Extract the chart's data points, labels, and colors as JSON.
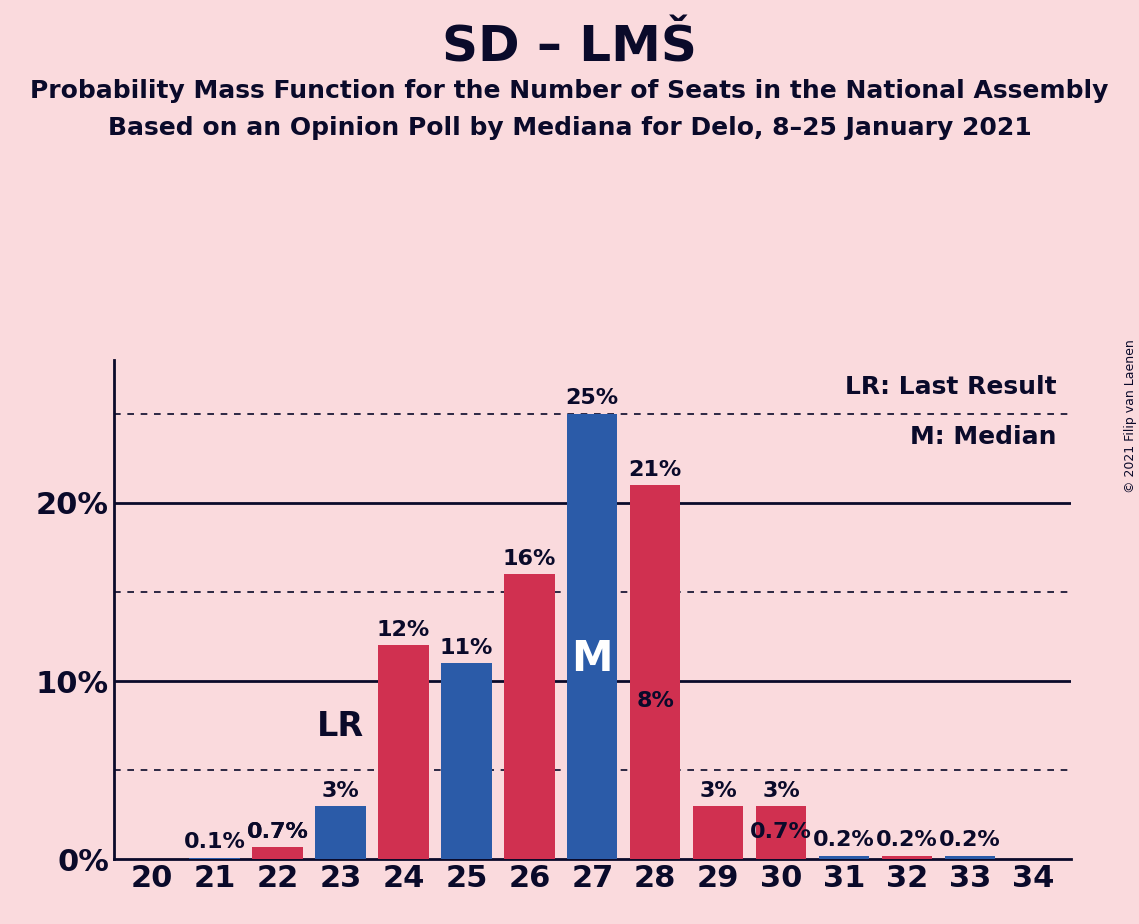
{
  "title": "SD – LMŠ",
  "subtitle1": "Probability Mass Function for the Number of Seats in the National Assembly",
  "subtitle2": "Based on an Opinion Poll by Mediana for Delo, 8–25 January 2021",
  "copyright": "© 2021 Filip van Laenen",
  "seats": [
    20,
    21,
    22,
    23,
    24,
    25,
    26,
    27,
    28,
    29,
    30,
    31,
    32,
    33,
    34
  ],
  "blue_values": [
    0.0,
    0.1,
    0.7,
    3.0,
    0.0,
    11.0,
    0.0,
    25.0,
    8.0,
    0.0,
    0.7,
    0.2,
    0.0,
    0.2,
    0.0
  ],
  "red_values": [
    0.0,
    0.0,
    0.7,
    0.0,
    12.0,
    0.0,
    16.0,
    0.0,
    21.0,
    3.0,
    3.0,
    0.0,
    0.2,
    0.0,
    0.0
  ],
  "blue_color": "#2B5BA8",
  "red_color": "#D03050",
  "background_color": "#FADADD",
  "text_color": "#0A0A2A",
  "median_seat": 27,
  "lr_seat": 23,
  "ylim": [
    0,
    28
  ],
  "dotted_lines": [
    5,
    15,
    25
  ],
  "solid_lines": [
    10,
    20
  ],
  "bar_width": 0.8,
  "title_fontsize": 36,
  "subtitle_fontsize": 18,
  "annotation_fontsize": 16,
  "tick_fontsize": 22,
  "legend_fontsize": 18
}
